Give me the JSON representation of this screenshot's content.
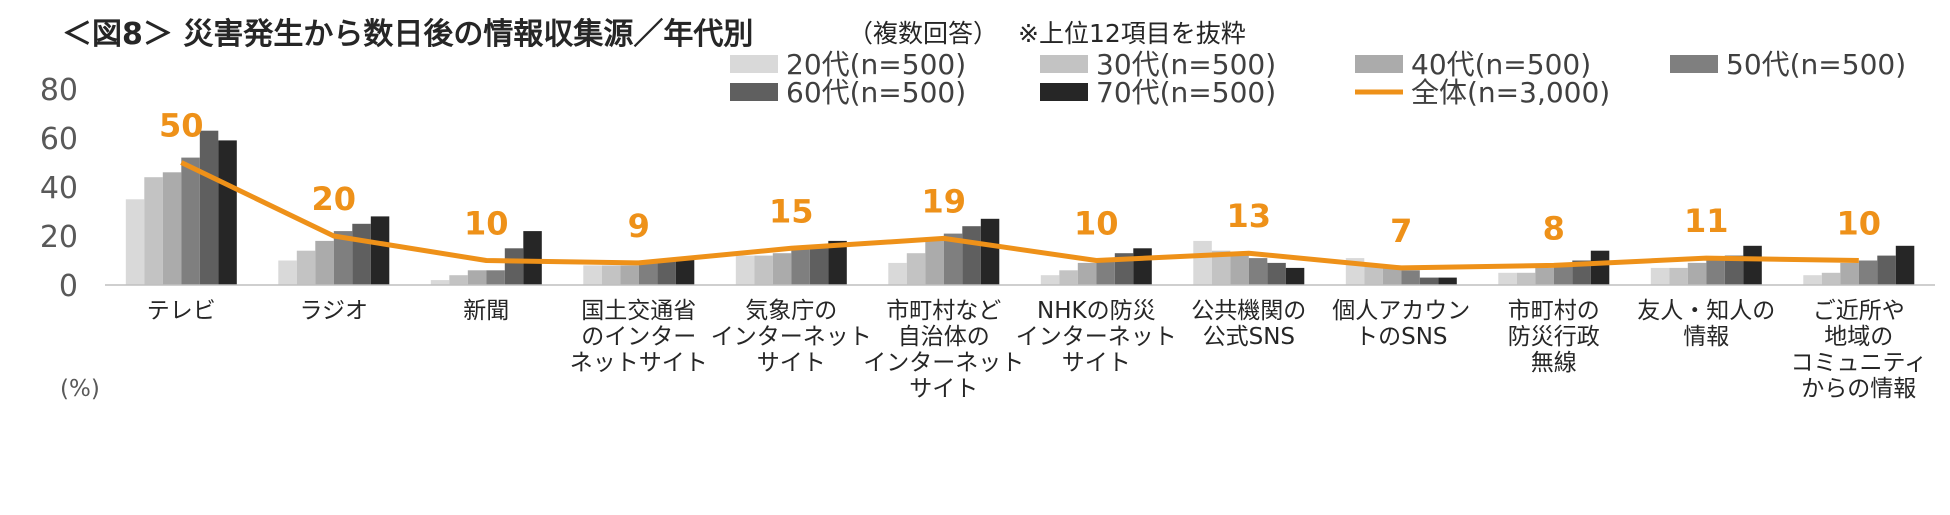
{
  "chart_data": {
    "type": "bar",
    "title": "＜図8＞ 災害発生から数日後の情報収集源／年代別",
    "subtitle": "（複数回答）",
    "note": "※上位12項目を抜粋",
    "ylabel": "(%)",
    "ylim": [
      0,
      80
    ],
    "yticks": [
      0,
      20,
      40,
      60,
      80
    ],
    "categories": [
      [
        "テレビ"
      ],
      [
        "ラジオ"
      ],
      [
        "新聞"
      ],
      [
        "国土交通省",
        "のインター",
        "ネットサイト"
      ],
      [
        "気象庁の",
        "インターネット",
        "サイト"
      ],
      [
        "市町村など",
        "自治体の",
        "インターネット",
        "サイト"
      ],
      [
        "NHKの防災",
        "インターネット",
        "サイト"
      ],
      [
        "公共機関の",
        "公式SNS"
      ],
      [
        "個人アカウン",
        "トのSNS"
      ],
      [
        "市町村の",
        "防災行政",
        "無線"
      ],
      [
        "友人・知人の",
        "情報"
      ],
      [
        "ご近所や",
        "地域の",
        "コミュニティ",
        "からの情報"
      ]
    ],
    "series": [
      {
        "name": "20代(n=500)",
        "color": "#D9D9D9",
        "values": [
          35,
          10,
          2,
          8,
          12,
          9,
          4,
          18,
          11,
          5,
          7,
          4
        ]
      },
      {
        "name": "30代(n=500)",
        "color": "#C3C3C3",
        "values": [
          44,
          14,
          4,
          8,
          12,
          13,
          6,
          14,
          8,
          5,
          7,
          5
        ]
      },
      {
        "name": "40代(n=500)",
        "color": "#ABABAB",
        "values": [
          46,
          18,
          6,
          8,
          13,
          19,
          9,
          13,
          7,
          7,
          9,
          9
        ]
      },
      {
        "name": "50代(n=500)",
        "color": "#7F7F7F",
        "values": [
          52,
          22,
          6,
          9,
          15,
          21,
          11,
          11,
          6,
          8,
          10,
          10
        ]
      },
      {
        "name": "60代(n=500)",
        "color": "#5F5F5F",
        "values": [
          63,
          25,
          15,
          10,
          16,
          24,
          13,
          9,
          3,
          10,
          12,
          12
        ]
      },
      {
        "name": "70代(n=500)",
        "color": "#262626",
        "values": [
          59,
          28,
          22,
          11,
          18,
          27,
          15,
          7,
          3,
          14,
          16,
          16
        ]
      }
    ],
    "total": {
      "name": "全体(n=3,000)",
      "color": "#EE9119",
      "values": [
        50,
        20,
        10,
        9,
        15,
        19,
        10,
        13,
        7,
        8,
        11,
        10
      ]
    }
  }
}
